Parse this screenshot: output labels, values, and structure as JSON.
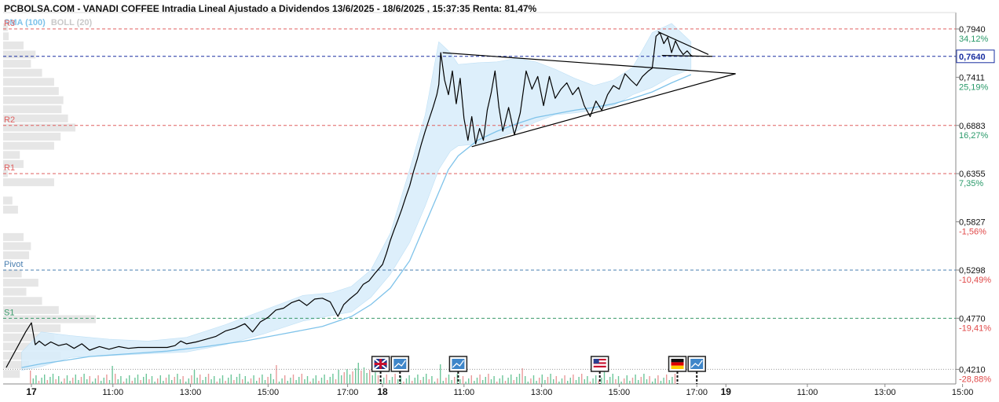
{
  "header": {
    "title": "PCBOLSA.COM - VANADI COFFEE Intradia Lineal Ajustado a Dividendos 13/6/2025 - 18/6/2025 , 15:37:35 Renta: 81,47%"
  },
  "legend": {
    "sma_label": "SMA (100)",
    "boll_label": "BOLL (20)"
  },
  "colors": {
    "price_line": "#000000",
    "sma": "#7fc3ea",
    "boll_fill": "#d7ecfa",
    "resistance": "#e06060",
    "pivot": "#4a7fb0",
    "support": "#3a9a6a",
    "current_price_line": "#1a2fa0",
    "volume_up": "#6dc69a",
    "volume_down": "#e99a9a",
    "pct_positive": "#2a9a6a",
    "pct_negative": "#e04848"
  },
  "chart_data": {
    "type": "line",
    "title": "PCBOLSA.COM - VANADI COFFEE Intradia Lineal Ajustado a Dividendos 13/6/2025 - 18/6/2025 , 15:37:35 Renta: 81,47%",
    "ylim": [
      0.405,
      0.812
    ],
    "grid": false,
    "x_ticks": [
      {
        "t": 0.0,
        "label": "17",
        "major": true
      },
      {
        "t": 4.2,
        "label": "11:00",
        "major": false
      },
      {
        "t": 8.2,
        "label": "13:00",
        "major": false
      },
      {
        "t": 12.2,
        "label": "15:00",
        "major": false
      },
      {
        "t": 16.3,
        "label": "17:00",
        "major": false
      },
      {
        "t": 18.1,
        "label": "18",
        "major": true
      },
      {
        "t": 22.3,
        "label": "11:00",
        "major": false
      },
      {
        "t": 26.3,
        "label": "13:00",
        "major": false
      },
      {
        "t": 30.3,
        "label": "15:00",
        "major": false
      },
      {
        "t": 34.3,
        "label": "17:00",
        "major": false
      },
      {
        "t": 35.8,
        "label": "19",
        "major": true
      },
      {
        "t": 40.0,
        "label": "11:00",
        "major": false
      },
      {
        "t": 44.0,
        "label": "13:00",
        "major": false
      },
      {
        "t": 48.0,
        "label": "15:00",
        "major": false
      }
    ],
    "y_ticks": [
      {
        "value": 0.794,
        "label": "0,7940",
        "pct": "34,12%"
      },
      {
        "value": 0.7411,
        "label": "0,7411",
        "pct": "25,19%"
      },
      {
        "value": 0.6883,
        "label": "0,6883",
        "pct": "16,27%"
      },
      {
        "value": 0.6355,
        "label": "0,6355",
        "pct": "7,35%"
      },
      {
        "value": 0.5827,
        "label": "0,5827",
        "pct": "-1,56%"
      },
      {
        "value": 0.5298,
        "label": "0,5298",
        "pct": "-10,49%"
      },
      {
        "value": 0.477,
        "label": "0,4770",
        "pct": "-19,41%"
      },
      {
        "value": 0.421,
        "label": "0,4210",
        "pct": "-28,88%"
      }
    ],
    "current_price": {
      "value": 0.764,
      "label": "0,7640"
    },
    "levels": [
      {
        "name": "R3",
        "value": 0.794,
        "kind": "resistance"
      },
      {
        "name": "R2",
        "value": 0.6883,
        "kind": "resistance"
      },
      {
        "name": "R1",
        "value": 0.6355,
        "kind": "resistance"
      },
      {
        "name": "Pivot",
        "value": 0.5298,
        "kind": "pivot"
      },
      {
        "name": "S1",
        "value": 0.477,
        "kind": "support"
      }
    ],
    "series": [
      {
        "name": "VANADI COFFEE",
        "kind": "price",
        "points": [
          [
            -1.3,
            0.423
          ],
          [
            -0.3,
            0.462
          ],
          [
            0.0,
            0.472
          ],
          [
            0.2,
            0.448
          ],
          [
            0.4,
            0.452
          ],
          [
            0.7,
            0.447
          ],
          [
            1.0,
            0.451
          ],
          [
            1.4,
            0.447
          ],
          [
            1.8,
            0.449
          ],
          [
            2.2,
            0.444
          ],
          [
            2.6,
            0.449
          ],
          [
            3.0,
            0.442
          ],
          [
            3.5,
            0.446
          ],
          [
            4.0,
            0.443
          ],
          [
            4.5,
            0.446
          ],
          [
            5.0,
            0.444
          ],
          [
            5.5,
            0.445
          ],
          [
            6.0,
            0.445
          ],
          [
            6.5,
            0.445
          ],
          [
            7.0,
            0.445
          ],
          [
            7.4,
            0.447
          ],
          [
            7.7,
            0.452
          ],
          [
            8.0,
            0.449
          ],
          [
            8.5,
            0.451
          ],
          [
            9.0,
            0.454
          ],
          [
            9.5,
            0.457
          ],
          [
            10.0,
            0.463
          ],
          [
            10.5,
            0.466
          ],
          [
            11.0,
            0.471
          ],
          [
            11.4,
            0.462
          ],
          [
            11.8,
            0.473
          ],
          [
            12.2,
            0.478
          ],
          [
            12.6,
            0.486
          ],
          [
            13.0,
            0.488
          ],
          [
            13.4,
            0.494
          ],
          [
            13.8,
            0.497
          ],
          [
            14.2,
            0.491
          ],
          [
            14.6,
            0.498
          ],
          [
            15.0,
            0.499
          ],
          [
            15.4,
            0.495
          ],
          [
            15.8,
            0.479
          ],
          [
            16.1,
            0.492
          ],
          [
            16.4,
            0.498
          ],
          [
            16.8,
            0.505
          ],
          [
            17.1,
            0.514
          ],
          [
            17.4,
            0.518
          ],
          [
            17.7,
            0.526
          ],
          [
            17.9,
            0.531
          ],
          [
            18.1,
            0.536
          ],
          [
            18.3,
            0.548
          ],
          [
            18.5,
            0.562
          ],
          [
            18.7,
            0.574
          ],
          [
            18.9,
            0.585
          ],
          [
            19.1,
            0.597
          ],
          [
            19.3,
            0.61
          ],
          [
            19.5,
            0.622
          ],
          [
            19.7,
            0.638
          ],
          [
            19.9,
            0.652
          ],
          [
            20.1,
            0.668
          ],
          [
            20.3,
            0.682
          ],
          [
            20.5,
            0.695
          ],
          [
            20.7,
            0.708
          ],
          [
            20.9,
            0.722
          ],
          [
            21.0,
            0.733
          ],
          [
            21.1,
            0.768
          ],
          [
            21.3,
            0.738
          ],
          [
            21.5,
            0.722
          ],
          [
            21.7,
            0.748
          ],
          [
            21.9,
            0.712
          ],
          [
            22.1,
            0.74
          ],
          [
            22.3,
            0.696
          ],
          [
            22.5,
            0.672
          ],
          [
            22.7,
            0.698
          ],
          [
            22.9,
            0.668
          ],
          [
            23.1,
            0.685
          ],
          [
            23.3,
            0.672
          ],
          [
            23.5,
            0.705
          ],
          [
            23.7,
            0.724
          ],
          [
            23.9,
            0.748
          ],
          [
            24.1,
            0.708
          ],
          [
            24.3,
            0.682
          ],
          [
            24.6,
            0.708
          ],
          [
            24.9,
            0.678
          ],
          [
            25.2,
            0.702
          ],
          [
            25.5,
            0.748
          ],
          [
            25.8,
            0.728
          ],
          [
            26.1,
            0.742
          ],
          [
            26.4,
            0.71
          ],
          [
            26.7,
            0.742
          ],
          [
            27.0,
            0.718
          ],
          [
            27.3,
            0.728
          ],
          [
            27.6,
            0.735
          ],
          [
            27.9,
            0.722
          ],
          [
            28.2,
            0.73
          ],
          [
            28.5,
            0.71
          ],
          [
            28.8,
            0.698
          ],
          [
            29.1,
            0.715
          ],
          [
            29.4,
            0.705
          ],
          [
            29.7,
            0.722
          ],
          [
            30.0,
            0.732
          ],
          [
            30.3,
            0.728
          ],
          [
            30.6,
            0.745
          ],
          [
            30.9,
            0.738
          ],
          [
            31.2,
            0.732
          ],
          [
            31.5,
            0.742
          ],
          [
            31.8,
            0.748
          ],
          [
            32.0,
            0.751
          ],
          [
            32.2,
            0.786
          ],
          [
            32.4,
            0.79
          ],
          [
            32.6,
            0.778
          ],
          [
            32.8,
            0.785
          ],
          [
            33.0,
            0.768
          ],
          [
            33.2,
            0.781
          ],
          [
            33.4,
            0.772
          ],
          [
            33.6,
            0.766
          ],
          [
            33.8,
            0.77
          ],
          [
            34.0,
            0.765
          ],
          [
            34.1,
            0.764
          ]
        ]
      },
      {
        "name": "SMA (100)",
        "kind": "sma",
        "points": [
          [
            -0.5,
            0.423
          ],
          [
            0.5,
            0.427
          ],
          [
            1.5,
            0.43
          ],
          [
            3.0,
            0.435
          ],
          [
            5.0,
            0.438
          ],
          [
            7.0,
            0.441
          ],
          [
            9.0,
            0.446
          ],
          [
            11.0,
            0.452
          ],
          [
            13.0,
            0.46
          ],
          [
            15.0,
            0.468
          ],
          [
            16.5,
            0.479
          ],
          [
            17.5,
            0.492
          ],
          [
            18.5,
            0.51
          ],
          [
            19.5,
            0.54
          ],
          [
            20.5,
            0.59
          ],
          [
            21.0,
            0.615
          ],
          [
            21.5,
            0.64
          ],
          [
            22.0,
            0.655
          ],
          [
            23.0,
            0.672
          ],
          [
            24.0,
            0.682
          ],
          [
            25.0,
            0.69
          ],
          [
            26.0,
            0.697
          ],
          [
            27.0,
            0.701
          ],
          [
            28.0,
            0.705
          ],
          [
            29.0,
            0.708
          ],
          [
            30.0,
            0.712
          ],
          [
            31.0,
            0.718
          ],
          [
            32.0,
            0.725
          ],
          [
            33.0,
            0.735
          ],
          [
            34.0,
            0.744
          ]
        ]
      },
      {
        "name": "BOLL (20)",
        "kind": "bollinger_band",
        "upper": [
          [
            -0.5,
            0.44
          ],
          [
            0.5,
            0.462
          ],
          [
            2.0,
            0.458
          ],
          [
            4.0,
            0.454
          ],
          [
            6.0,
            0.452
          ],
          [
            8.0,
            0.456
          ],
          [
            10.0,
            0.47
          ],
          [
            12.0,
            0.486
          ],
          [
            14.0,
            0.502
          ],
          [
            15.5,
            0.505
          ],
          [
            16.5,
            0.512
          ],
          [
            17.5,
            0.53
          ],
          [
            18.5,
            0.57
          ],
          [
            19.5,
            0.64
          ],
          [
            20.3,
            0.7
          ],
          [
            21.0,
            0.78
          ],
          [
            21.6,
            0.768
          ],
          [
            22.0,
            0.755
          ],
          [
            23.0,
            0.757
          ],
          [
            24.0,
            0.758
          ],
          [
            25.0,
            0.762
          ],
          [
            26.0,
            0.758
          ],
          [
            27.0,
            0.75
          ],
          [
            28.0,
            0.74
          ],
          [
            29.0,
            0.732
          ],
          [
            30.0,
            0.738
          ],
          [
            31.0,
            0.752
          ],
          [
            32.0,
            0.79
          ],
          [
            33.0,
            0.8
          ],
          [
            34.0,
            0.78
          ]
        ],
        "lower": [
          [
            -0.5,
            0.42
          ],
          [
            0.5,
            0.424
          ],
          [
            2.0,
            0.434
          ],
          [
            4.0,
            0.436
          ],
          [
            6.0,
            0.438
          ],
          [
            8.0,
            0.44
          ],
          [
            10.0,
            0.448
          ],
          [
            12.0,
            0.46
          ],
          [
            14.0,
            0.474
          ],
          [
            15.5,
            0.48
          ],
          [
            16.5,
            0.484
          ],
          [
            17.5,
            0.5
          ],
          [
            18.5,
            0.525
          ],
          [
            19.5,
            0.56
          ],
          [
            20.3,
            0.6
          ],
          [
            21.0,
            0.64
          ],
          [
            21.6,
            0.66
          ],
          [
            22.0,
            0.666
          ],
          [
            23.0,
            0.668
          ],
          [
            24.0,
            0.674
          ],
          [
            25.0,
            0.682
          ],
          [
            26.0,
            0.692
          ],
          [
            27.0,
            0.7
          ],
          [
            28.0,
            0.702
          ],
          [
            29.0,
            0.705
          ],
          [
            30.0,
            0.71
          ],
          [
            31.0,
            0.722
          ],
          [
            32.0,
            0.73
          ],
          [
            33.0,
            0.742
          ],
          [
            34.0,
            0.75
          ]
        ]
      }
    ],
    "trendlines": [
      {
        "name": "upper-trendline",
        "points": [
          [
            21.2,
            0.768
          ],
          [
            36.3,
            0.745
          ]
        ]
      },
      {
        "name": "lower-trendline",
        "points": [
          [
            22.7,
            0.665
          ],
          [
            36.3,
            0.745
          ]
        ]
      },
      {
        "name": "pennant-upper",
        "points": [
          [
            32.3,
            0.791
          ],
          [
            34.9,
            0.766
          ]
        ]
      },
      {
        "name": "pennant-lower",
        "points": [
          [
            32.5,
            0.765
          ],
          [
            35.1,
            0.764
          ]
        ]
      }
    ],
    "volume_profile": [
      {
        "value": 0.796,
        "size": 0.05
      },
      {
        "value": 0.786,
        "size": 0.06
      },
      {
        "value": 0.776,
        "size": 0.22
      },
      {
        "value": 0.766,
        "size": 0.35
      },
      {
        "value": 0.756,
        "size": 0.3
      },
      {
        "value": 0.746,
        "size": 0.42
      },
      {
        "value": 0.736,
        "size": 0.55
      },
      {
        "value": 0.726,
        "size": 0.6
      },
      {
        "value": 0.716,
        "size": 0.65
      },
      {
        "value": 0.706,
        "size": 0.63
      },
      {
        "value": 0.696,
        "size": 0.7
      },
      {
        "value": 0.686,
        "size": 0.78
      },
      {
        "value": 0.676,
        "size": 0.62
      },
      {
        "value": 0.666,
        "size": 0.55
      },
      {
        "value": 0.656,
        "size": 0.18
      },
      {
        "value": 0.646,
        "size": 0.22
      },
      {
        "value": 0.636,
        "size": 0.05
      },
      {
        "value": 0.626,
        "size": 0.55
      },
      {
        "value": 0.606,
        "size": 0.1
      },
      {
        "value": 0.596,
        "size": 0.16
      },
      {
        "value": 0.566,
        "size": 0.22
      },
      {
        "value": 0.556,
        "size": 0.3
      },
      {
        "value": 0.546,
        "size": 0.28
      },
      {
        "value": 0.526,
        "size": 0.2
      },
      {
        "value": 0.516,
        "size": 0.38
      },
      {
        "value": 0.506,
        "size": 0.25
      },
      {
        "value": 0.496,
        "size": 0.42
      },
      {
        "value": 0.486,
        "size": 0.6
      },
      {
        "value": 0.476,
        "size": 1.0
      },
      {
        "value": 0.466,
        "size": 0.62
      },
      {
        "value": 0.456,
        "size": 0.55
      },
      {
        "value": 0.446,
        "size": 0.9
      },
      {
        "value": 0.436,
        "size": 0.62
      },
      {
        "value": 0.426,
        "size": 0.28
      },
      {
        "value": 0.416,
        "size": 0.18
      }
    ],
    "events": [
      {
        "t": 18.0,
        "icon": "uk-flag-icon"
      },
      {
        "t": 19.0,
        "icon": "news-icon"
      },
      {
        "t": 22.0,
        "icon": "news-icon"
      },
      {
        "t": 29.3,
        "icon": "us-flag-icon"
      },
      {
        "t": 33.3,
        "icon": "germany-flag-icon"
      },
      {
        "t": 34.3,
        "icon": "news-icon"
      }
    ]
  }
}
